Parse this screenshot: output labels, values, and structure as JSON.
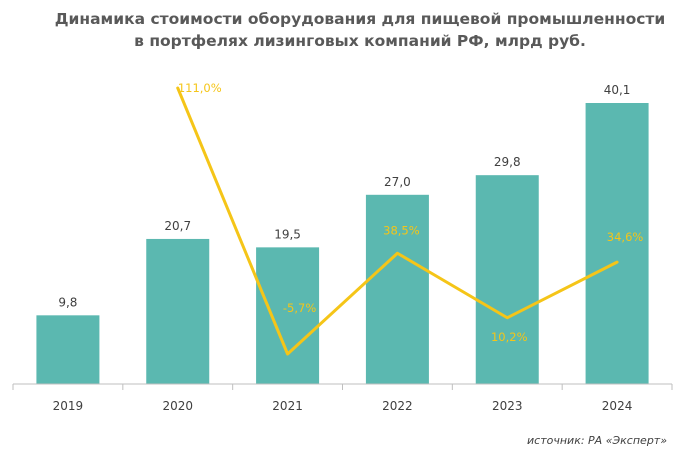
{
  "title_line1": "Динамика стоимости оборудования для пищевой промышленности",
  "title_line2": "в портфелях лизинговых компаний РФ, млрд руб.",
  "source": "источник: РА «Эксперт»",
  "colors": {
    "bar": "#5BB8B0",
    "line": "#F5C518",
    "line_label": "#F5C518",
    "axis": "#BFBFBF",
    "text": "#404040"
  },
  "chart_data": {
    "type": "bar",
    "categories": [
      "2019",
      "2020",
      "2021",
      "2022",
      "2023",
      "2024"
    ],
    "series": [
      {
        "values": [
          9.8,
          20.7,
          19.5,
          27.0,
          29.8,
          40.1
        ],
        "labels": [
          "9,8",
          "20,7",
          "19,5",
          "27,0",
          "29,8",
          "40,1"
        ]
      }
    ],
    "line_series": {
      "type": "line",
      "values": [
        null,
        111.0,
        -5.7,
        38.5,
        10.2,
        34.6
      ],
      "labels": [
        "",
        "111,0%",
        "-5,7%",
        "38,5%",
        "10,2%",
        "34,6%"
      ]
    },
    "ylim": [
      0,
      40.1
    ],
    "line_ylim": [
      -5.7,
      111.0
    ],
    "legend": false,
    "grid": false
  }
}
